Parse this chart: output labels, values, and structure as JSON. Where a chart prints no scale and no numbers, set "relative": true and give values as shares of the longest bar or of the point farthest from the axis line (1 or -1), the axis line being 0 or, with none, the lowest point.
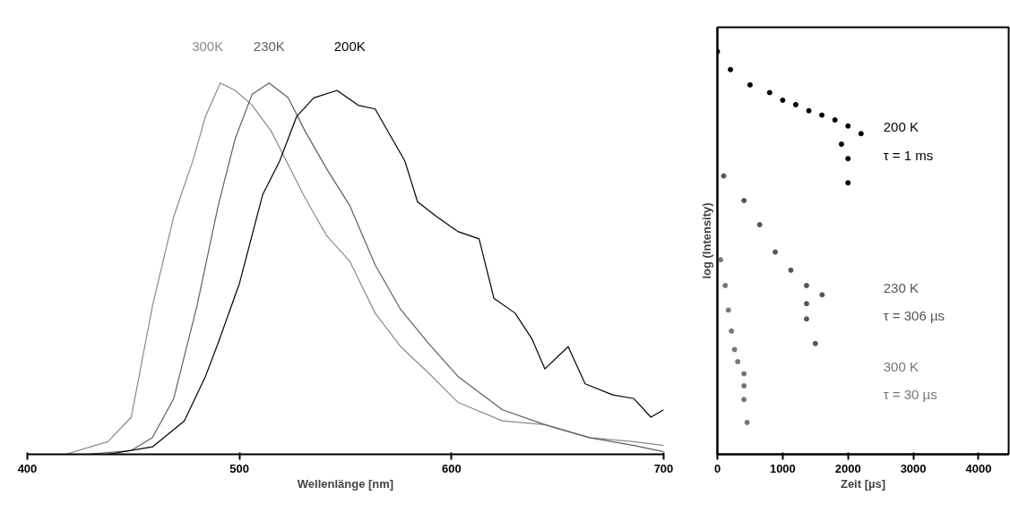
{
  "chart_data": [
    {
      "type": "line",
      "relative": true,
      "xlabel": "Wellenlänge [nm]",
      "xlim": [
        400,
        700
      ],
      "xticks": [
        400,
        500,
        600,
        700
      ],
      "tick_labels": "x",
      "grid": false,
      "marker": "none",
      "line_style": "solid",
      "series": [
        {
          "name": "300K",
          "color": "#8a8a8a",
          "x": [
            418,
            438,
            449,
            459,
            469,
            478,
            484,
            491,
            498,
            506,
            515,
            523,
            531,
            541,
            552,
            564,
            576,
            589,
            603,
            624,
            644,
            665,
            686,
            700
          ],
          "values": [
            0,
            0.034,
            0.1,
            0.4,
            0.64,
            0.79,
            0.91,
            1.0,
            0.98,
            0.94,
            0.87,
            0.78,
            0.69,
            0.59,
            0.52,
            0.38,
            0.29,
            0.22,
            0.14,
            0.09,
            0.08,
            0.045,
            0.034,
            0.024
          ]
        },
        {
          "name": "230K",
          "color": "#5e5e5e",
          "x": [
            428,
            449,
            459,
            469,
            480,
            490,
            498,
            506,
            514,
            523,
            531,
            541,
            552,
            564,
            576,
            589,
            603,
            624,
            644,
            665,
            686,
            700
          ],
          "values": [
            0,
            0.01,
            0.045,
            0.15,
            0.4,
            0.67,
            0.85,
            0.97,
            1.0,
            0.96,
            0.87,
            0.77,
            0.67,
            0.51,
            0.39,
            0.3,
            0.21,
            0.12,
            0.08,
            0.045,
            0.024,
            0.007
          ]
        },
        {
          "name": "200K",
          "color": "#000000",
          "x": [
            438,
            459,
            474,
            484,
            490,
            500,
            511,
            519,
            527,
            535,
            546,
            556,
            564,
            572,
            578,
            584,
            593,
            603,
            613,
            620,
            630,
            638,
            644,
            655,
            663,
            676,
            686,
            694,
            700
          ],
          "values": [
            0,
            0.02,
            0.09,
            0.21,
            0.3,
            0.46,
            0.7,
            0.79,
            0.91,
            0.96,
            0.98,
            0.94,
            0.93,
            0.85,
            0.79,
            0.68,
            0.64,
            0.6,
            0.58,
            0.42,
            0.38,
            0.31,
            0.23,
            0.29,
            0.19,
            0.16,
            0.15,
            0.1,
            0.12
          ]
        }
      ]
    },
    {
      "type": "scatter",
      "relative": true,
      "xlabel": "Zeit [µs]",
      "ylabel": "log (Intensity)",
      "xlim": [
        0,
        4460
      ],
      "xticks": [
        0,
        1000,
        2000,
        3000,
        4000
      ],
      "tick_labels": "x",
      "grid": false,
      "marker": "circle",
      "annotations": [
        "τ = 1 ms",
        "τ = 306 µs",
        "τ = 30 µs"
      ],
      "series": [
        {
          "name": "200 K",
          "color": "#000000",
          "x": [
            0,
            200,
            500,
            800,
            1000,
            1200,
            1400,
            1600,
            1800,
            2000,
            2200,
            1900,
            2000,
            2000
          ],
          "values": [
            1.0,
            0.955,
            0.917,
            0.898,
            0.879,
            0.868,
            0.853,
            0.842,
            0.83,
            0.815,
            0.796,
            0.77,
            0.734,
            0.674
          ]
        },
        {
          "name": "230 K",
          "color": "#555555",
          "x": [
            96,
            407,
            647,
            886,
            1125,
            1365,
            1604,
            1365,
            1365,
            1500
          ],
          "values": [
            0.691,
            0.63,
            0.57,
            0.502,
            0.457,
            0.419,
            0.396,
            0.374,
            0.336,
            0.275
          ]
        },
        {
          "name": "300 K",
          "color": "#777777",
          "x": [
            48,
            120,
            168,
            215,
            263,
            311,
            407,
            407,
            407,
            455
          ],
          "values": [
            0.483,
            0.419,
            0.358,
            0.306,
            0.26,
            0.23,
            0.2,
            0.17,
            0.136,
            0.079
          ]
        }
      ]
    }
  ]
}
